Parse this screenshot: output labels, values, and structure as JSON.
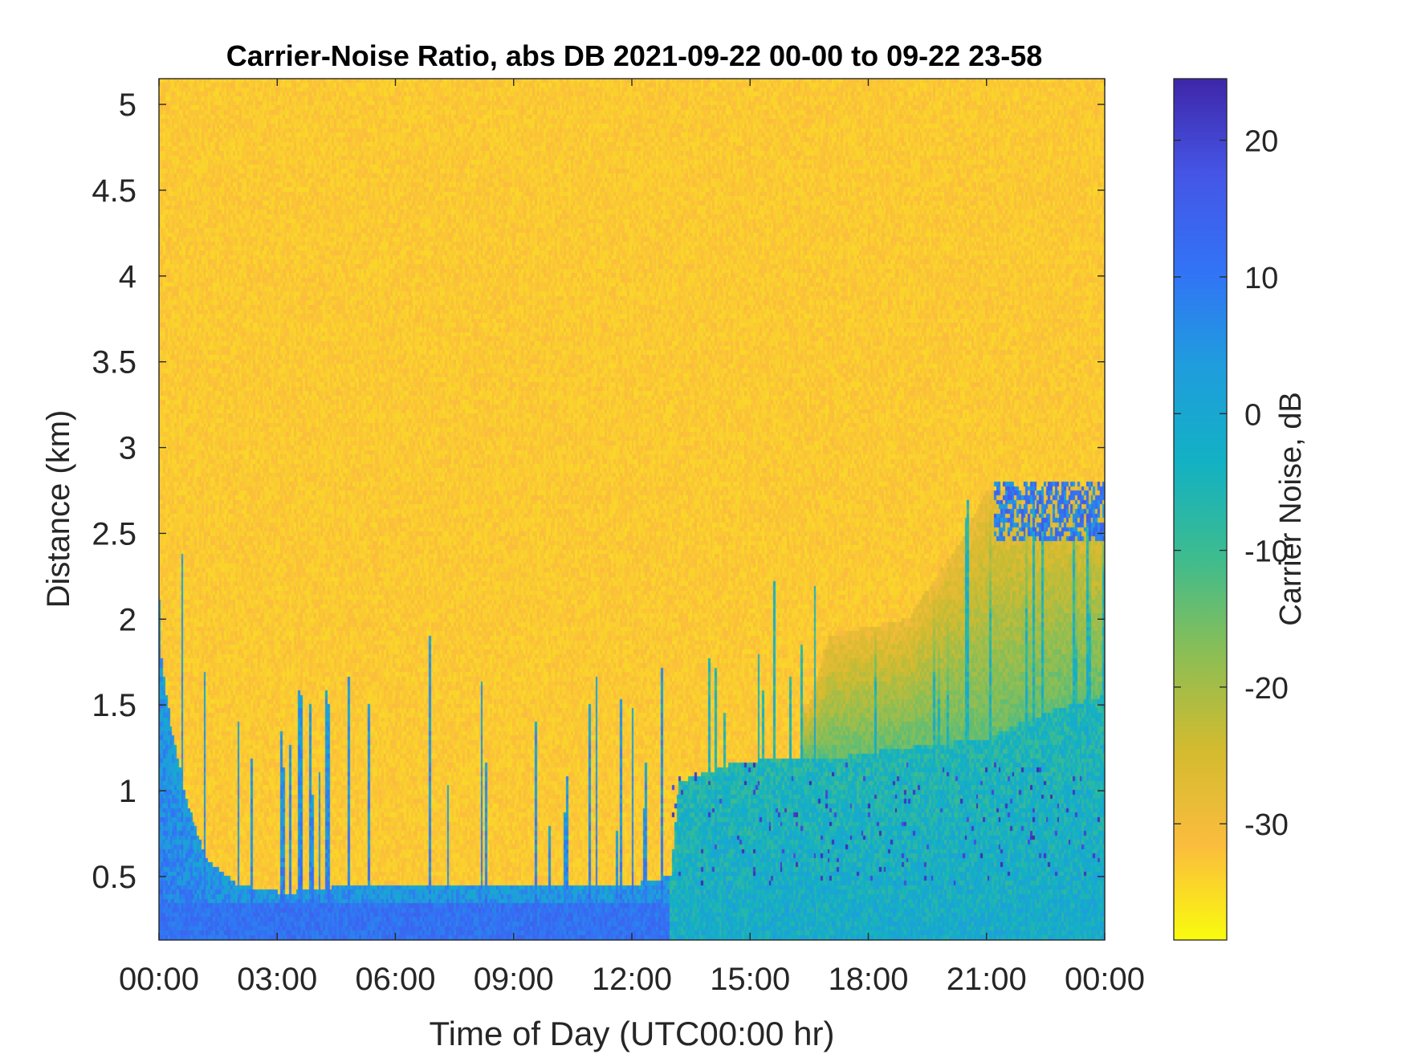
{
  "colors": {
    "background": "#ffffff",
    "axis": "#262626",
    "high_noise": "#f9d23c",
    "low_noise": "#3e26a8"
  },
  "chart_data": {
    "type": "heatmap",
    "title": "Carrier-Noise Ratio, abs DB 2021-09-22 00-00 to 09-22 23-58",
    "xlabel": "Time of Day (UTC00:00 hr)",
    "ylabel": "Distance (km)",
    "colorbar_label": "Carrier Noise, dB",
    "xlim_hours": [
      0,
      24
    ],
    "ylim_km": [
      0.13,
      5.15
    ],
    "clim_db": [
      -38.5,
      24.5
    ],
    "x_ticks": [
      {
        "value": 0,
        "label": "00:00"
      },
      {
        "value": 3,
        "label": "03:00"
      },
      {
        "value": 6,
        "label": "06:00"
      },
      {
        "value": 9,
        "label": "09:00"
      },
      {
        "value": 12,
        "label": "12:00"
      },
      {
        "value": 15,
        "label": "15:00"
      },
      {
        "value": 18,
        "label": "18:00"
      },
      {
        "value": 21,
        "label": "21:00"
      },
      {
        "value": 24,
        "label": "00:00"
      }
    ],
    "y_ticks": [
      {
        "value": 0.5,
        "label": "0.5"
      },
      {
        "value": 1,
        "label": "1"
      },
      {
        "value": 1.5,
        "label": "1.5"
      },
      {
        "value": 2,
        "label": "2"
      },
      {
        "value": 2.5,
        "label": "2.5"
      },
      {
        "value": 3,
        "label": "3"
      },
      {
        "value": 3.5,
        "label": "3.5"
      },
      {
        "value": 4,
        "label": "4"
      },
      {
        "value": 4.5,
        "label": "4.5"
      },
      {
        "value": 5,
        "label": "5"
      }
    ],
    "colorbar_ticks": [
      {
        "value": 20,
        "label": "20"
      },
      {
        "value": 10,
        "label": "10"
      },
      {
        "value": 0,
        "label": "0"
      },
      {
        "value": -10,
        "label": "-10"
      },
      {
        "value": -20,
        "label": "-20"
      },
      {
        "value": -30,
        "label": "-30"
      }
    ],
    "colormap": "parula",
    "colormap_stops": [
      "#f9fb0e",
      "#fbbc3d",
      "#d2bb2f",
      "#8bbe55",
      "#3dbc8f",
      "#12b1c4",
      "#1f9ddd",
      "#3273f6",
      "#4556e6",
      "#3e26a8"
    ],
    "background_level_db": -33,
    "signal_top_profile_km": [
      {
        "hour": 0,
        "km": 1.9
      },
      {
        "hour": 0.3,
        "km": 1.4
      },
      {
        "hour": 0.7,
        "km": 0.95
      },
      {
        "hour": 1.2,
        "km": 0.6
      },
      {
        "hour": 2.0,
        "km": 0.45
      },
      {
        "hour": 3.2,
        "km": 0.4
      },
      {
        "hour": 5.0,
        "km": 0.45
      },
      {
        "hour": 9.0,
        "km": 0.45
      },
      {
        "hour": 12.0,
        "km": 0.45
      },
      {
        "hour": 13.0,
        "km": 0.5
      },
      {
        "hour": 13.2,
        "km": 1.05
      },
      {
        "hour": 14.5,
        "km": 1.15
      },
      {
        "hour": 16.0,
        "km": 1.2
      },
      {
        "hour": 17.5,
        "km": 1.2
      },
      {
        "hour": 19.0,
        "km": 1.25
      },
      {
        "hour": 21.0,
        "km": 1.3
      },
      {
        "hour": 22.5,
        "km": 1.45
      },
      {
        "hour": 24.0,
        "km": 1.55
      }
    ],
    "transition_layer_profile_km": [
      {
        "hour": 16.5,
        "km": 1.5
      },
      {
        "hour": 17.0,
        "km": 1.9
      },
      {
        "hour": 19.0,
        "km": 2.0
      },
      {
        "hour": 20.5,
        "km": 2.5
      },
      {
        "hour": 21.0,
        "km": 2.75
      },
      {
        "hour": 22.5,
        "km": 2.75
      },
      {
        "hour": 24.0,
        "km": 2.8
      }
    ]
  }
}
